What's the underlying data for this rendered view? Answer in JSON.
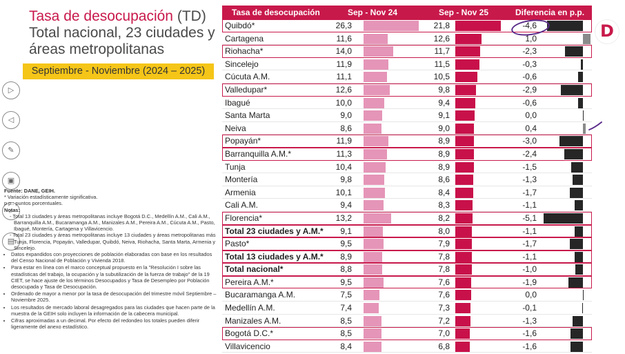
{
  "title": {
    "line1_accent": "Tasa de desocupación",
    "line1_suffix": " (TD)",
    "line2": "Total nacional, 23 ciudades y",
    "line3": "áreas metropolitanas"
  },
  "period": "Septiembre - Noviembre (2024 – 2025)",
  "logo_letter": "D",
  "tools": [
    {
      "name": "next-arrow-icon",
      "glyph": "▷"
    },
    {
      "name": "prev-arrow-icon",
      "glyph": "◁"
    },
    {
      "name": "pen-icon",
      "glyph": "✎"
    },
    {
      "name": "image-icon",
      "glyph": "▣"
    },
    {
      "name": "search-icon",
      "glyph": "⌕"
    },
    {
      "name": "slides-icon",
      "glyph": "▤"
    }
  ],
  "notes": {
    "source": "Fuente: DANE, GEIH.",
    "line_sig": "* Variación estadísticamente significativa.",
    "line_pp": "p.p.: puntos porcentuales.",
    "heading": "Notas:",
    "sub1": "- Total 13 ciudades y áreas metropolitanas incluye Bogotá D.C., Medellín A.M., Cali A.M., Barranquilla A.M., Bucaramanga A.M., Manizales A.M., Pereira A.M., Cúcuta A.M., Pasto, Ibagué, Montería, Cartagena y Villavicencio.",
    "sub2": "- Total 23 ciudades y áreas metropolitanas incluye 13 ciudades y áreas metropolitanas más Tunja, Florencia, Popayán, Valledupar, Quibdó, Neiva, Riohacha, Santa Marta, Armenia y Sincelejo.",
    "bullets": [
      "Datos expandidos con proyecciones de población elaboradas con base en los resultados del Censo Nacional de Población y Vivienda 2018.",
      "Para estar en línea con el marco conceptual propuesto en la \"Resolución I sobre las estadísticas del trabajo, la ocupación y la subutilización de la fuerza de trabajo\" de la 19 CIET, se hace ajuste de los términos Desocupados y Tasa de Desempleo por Población desocupada y Tasa de Desocupación.",
      "Ordenado de mayor a menor por la tasa de desocupación del trimestre móvil Septiembre – Noviembre 2025.",
      "Los resultados de mercado laboral desagregados para las ciudades que hacen parte de la muestra de la GEIH solo incluyen la información de la cabecera municipal.",
      "Cifras aproximadas a un decimal. Por efecto del redondeo los totales pueden diferir ligeramente del anexo estadístico."
    ]
  },
  "chart_data": {
    "type": "table",
    "title": "Tasa de desocupación (TD) Total nacional, 23 ciudades y áreas metropolitanas",
    "columns": [
      "Tasa de desocupación",
      "Sep - Nov 24",
      "Sep - Nov 25",
      "Diferencia en p.p."
    ],
    "rows": [
      {
        "city": "Quibdó*",
        "v24": "26,3",
        "v25": "21,8",
        "dif": "-4,6",
        "n24": 26.3,
        "n25": 21.8,
        "nd": -4.6,
        "hl": true,
        "bold": false
      },
      {
        "city": "Cartagena",
        "v24": "11,6",
        "v25": "12,6",
        "dif": "1,0",
        "n24": 11.6,
        "n25": 12.6,
        "nd": 1.0,
        "hl": false,
        "bold": false
      },
      {
        "city": "Riohacha*",
        "v24": "14,0",
        "v25": "11,7",
        "dif": "-2,3",
        "n24": 14.0,
        "n25": 11.7,
        "nd": -2.3,
        "hl": true,
        "bold": false
      },
      {
        "city": "Sincelejo",
        "v24": "11,9",
        "v25": "11,5",
        "dif": "-0,3",
        "n24": 11.9,
        "n25": 11.5,
        "nd": -0.3,
        "hl": false,
        "bold": false
      },
      {
        "city": "Cúcuta A.M.",
        "v24": "11,1",
        "v25": "10,5",
        "dif": "-0,6",
        "n24": 11.1,
        "n25": 10.5,
        "nd": -0.6,
        "hl": false,
        "bold": false
      },
      {
        "city": "Valledupar*",
        "v24": "12,6",
        "v25": "9,8",
        "dif": "-2,9",
        "n24": 12.6,
        "n25": 9.8,
        "nd": -2.9,
        "hl": true,
        "bold": false
      },
      {
        "city": "Ibagué",
        "v24": "10,0",
        "v25": "9,4",
        "dif": "-0,6",
        "n24": 10.0,
        "n25": 9.4,
        "nd": -0.6,
        "hl": false,
        "bold": false
      },
      {
        "city": "Santa Marta",
        "v24": "9,0",
        "v25": "9,1",
        "dif": "0,0",
        "n24": 9.0,
        "n25": 9.1,
        "nd": 0.0,
        "hl": false,
        "bold": false
      },
      {
        "city": "Neiva",
        "v24": "8,6",
        "v25": "9,0",
        "dif": "0,4",
        "n24": 8.6,
        "n25": 9.0,
        "nd": 0.4,
        "hl": false,
        "bold": false
      },
      {
        "city": "Popayán*",
        "v24": "11,9",
        "v25": "8,9",
        "dif": "-3,0",
        "n24": 11.9,
        "n25": 8.9,
        "nd": -3.0,
        "hl": true,
        "bold": false
      },
      {
        "city": "Barranquilla A.M.*",
        "v24": "11,3",
        "v25": "8,9",
        "dif": "-2,4",
        "n24": 11.3,
        "n25": 8.9,
        "nd": -2.4,
        "hl": true,
        "bold": false
      },
      {
        "city": "Tunja",
        "v24": "10,4",
        "v25": "8,9",
        "dif": "-1,5",
        "n24": 10.4,
        "n25": 8.9,
        "nd": -1.5,
        "hl": false,
        "bold": false
      },
      {
        "city": "Montería",
        "v24": "9,8",
        "v25": "8,6",
        "dif": "-1,3",
        "n24": 9.8,
        "n25": 8.6,
        "nd": -1.3,
        "hl": false,
        "bold": false
      },
      {
        "city": "Armenia",
        "v24": "10,1",
        "v25": "8,4",
        "dif": "-1,7",
        "n24": 10.1,
        "n25": 8.4,
        "nd": -1.7,
        "hl": false,
        "bold": false
      },
      {
        "city": "Cali A.M.",
        "v24": "9,4",
        "v25": "8,3",
        "dif": "-1,1",
        "n24": 9.4,
        "n25": 8.3,
        "nd": -1.1,
        "hl": false,
        "bold": false
      },
      {
        "city": "Florencia*",
        "v24": "13,2",
        "v25": "8,2",
        "dif": "-5,1",
        "n24": 13.2,
        "n25": 8.2,
        "nd": -5.1,
        "hl": true,
        "bold": false
      },
      {
        "city": "Total 23 ciudades y A.M.*",
        "v24": "9,1",
        "v25": "8,0",
        "dif": "-1,1",
        "n24": 9.1,
        "n25": 8.0,
        "nd": -1.1,
        "hl": true,
        "bold": true
      },
      {
        "city": "Pasto*",
        "v24": "9,5",
        "v25": "7,9",
        "dif": "-1,7",
        "n24": 9.5,
        "n25": 7.9,
        "nd": -1.7,
        "hl": true,
        "bold": false
      },
      {
        "city": "Total 13 ciudades y A.M.*",
        "v24": "8,9",
        "v25": "7,8",
        "dif": "-1,1",
        "n24": 8.9,
        "n25": 7.8,
        "nd": -1.1,
        "hl": true,
        "bold": true
      },
      {
        "city": "Total nacional*",
        "v24": "8,8",
        "v25": "7,8",
        "dif": "-1,0",
        "n24": 8.8,
        "n25": 7.8,
        "nd": -1.0,
        "hl": true,
        "bold": true
      },
      {
        "city": "Pereira A.M.*",
        "v24": "9,5",
        "v25": "7,6",
        "dif": "-1,9",
        "n24": 9.5,
        "n25": 7.6,
        "nd": -1.9,
        "hl": true,
        "bold": false
      },
      {
        "city": "Bucaramanga A.M.",
        "v24": "7,5",
        "v25": "7,6",
        "dif": "0,0",
        "n24": 7.5,
        "n25": 7.6,
        "nd": 0.0,
        "hl": false,
        "bold": false
      },
      {
        "city": "Medellín A.M.",
        "v24": "7,4",
        "v25": "7,3",
        "dif": "-0,1",
        "n24": 7.4,
        "n25": 7.3,
        "nd": -0.1,
        "hl": false,
        "bold": false
      },
      {
        "city": "Manizales A.M.",
        "v24": "8,5",
        "v25": "7,2",
        "dif": "-1,3",
        "n24": 8.5,
        "n25": 7.2,
        "nd": -1.3,
        "hl": false,
        "bold": false
      },
      {
        "city": "Bogotá D.C.*",
        "v24": "8,5",
        "v25": "7,0",
        "dif": "-1,6",
        "n24": 8.5,
        "n25": 7.0,
        "nd": -1.6,
        "hl": true,
        "bold": false
      },
      {
        "city": "Villavicencio",
        "v24": "8,4",
        "v25": "6,8",
        "dif": "-1,6",
        "n24": 8.4,
        "n25": 6.8,
        "nd": -1.6,
        "hl": false,
        "bold": false
      }
    ]
  }
}
